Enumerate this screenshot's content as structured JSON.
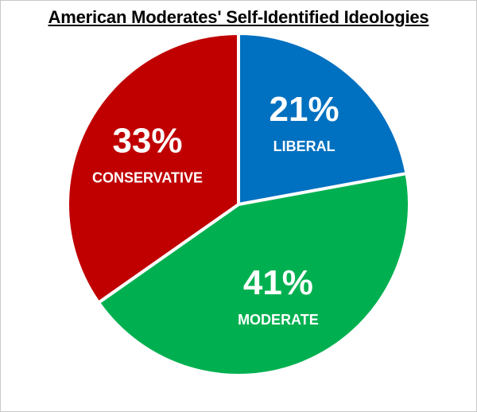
{
  "chart_data": {
    "type": "pie",
    "title": "American Moderates' Self-Identified Ideologies",
    "slices": [
      {
        "label": "LIBERAL",
        "value": 21,
        "value_label": "21%",
        "color": "#0070c0"
      },
      {
        "label": "MODERATE",
        "value": 41,
        "value_label": "41%",
        "color": "#00b050"
      },
      {
        "label": "CONSERVATIVE",
        "value": 33,
        "value_label": "33%",
        "color": "#c00000"
      }
    ]
  }
}
